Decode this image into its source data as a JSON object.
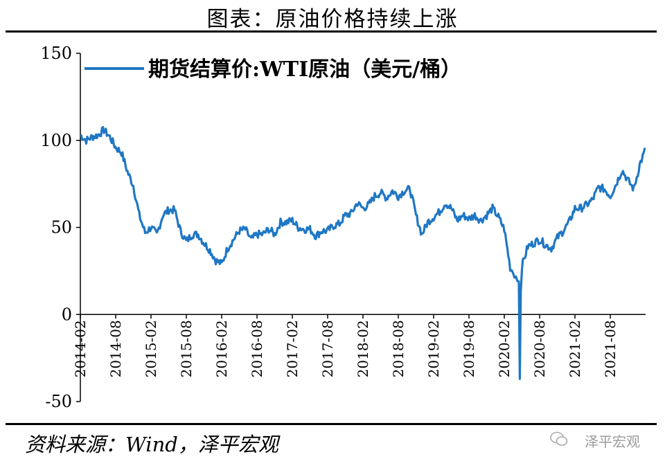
{
  "title": "图表：原油价格持续上涨",
  "source": "资料来源：Wind，泽平宏观",
  "watermark": "泽平宏观",
  "colors": {
    "series": "#1f77c4",
    "axis": "#000000"
  },
  "chart_data": {
    "type": "line",
    "title": "图表：原油价格持续上涨",
    "xlabel": "",
    "ylabel": "",
    "ylim": [
      -50,
      150
    ],
    "yticks": [
      150,
      100,
      50,
      0,
      -50
    ],
    "xlim": [
      "2014-02",
      "2022-02"
    ],
    "xticks": [
      "2014-02",
      "2014-08",
      "2015-02",
      "2015-08",
      "2016-02",
      "2016-08",
      "2017-02",
      "2017-08",
      "2018-02",
      "2018-08",
      "2019-02",
      "2019-08",
      "2020-02",
      "2020-08",
      "2021-02",
      "2021-08"
    ],
    "grid": false,
    "legend": "top-left",
    "series": [
      {
        "name": "期货结算价:WTI原油（美元/桶）",
        "color": "#1f77c4",
        "points": [
          [
            "2014-02",
            103
          ],
          [
            "2014-03",
            100
          ],
          [
            "2014-04",
            102
          ],
          [
            "2014-05",
            103
          ],
          [
            "2014-06",
            106
          ],
          [
            "2014-07",
            102
          ],
          [
            "2014-08",
            96
          ],
          [
            "2014-09",
            93
          ],
          [
            "2014-10",
            82
          ],
          [
            "2014-11",
            74
          ],
          [
            "2014-12",
            57
          ],
          [
            "2015-01",
            47
          ],
          [
            "2015-02",
            50
          ],
          [
            "2015-03",
            46
          ],
          [
            "2015-04",
            57
          ],
          [
            "2015-05",
            60
          ],
          [
            "2015-06",
            60
          ],
          [
            "2015-07",
            48
          ],
          [
            "2015-08",
            42
          ],
          [
            "2015-09",
            46
          ],
          [
            "2015-10",
            46
          ],
          [
            "2015-11",
            41
          ],
          [
            "2015-12",
            37
          ],
          [
            "2016-01",
            31
          ],
          [
            "2016-02",
            29
          ],
          [
            "2016-03",
            38
          ],
          [
            "2016-04",
            43
          ],
          [
            "2016-05",
            48
          ],
          [
            "2016-06",
            49
          ],
          [
            "2016-07",
            43
          ],
          [
            "2016-08",
            46
          ],
          [
            "2016-09",
            46
          ],
          [
            "2016-10",
            49
          ],
          [
            "2016-11",
            46
          ],
          [
            "2016-12",
            53
          ],
          [
            "2017-01",
            53
          ],
          [
            "2017-02",
            54
          ],
          [
            "2017-03",
            50
          ],
          [
            "2017-04",
            49
          ],
          [
            "2017-05",
            49
          ],
          [
            "2017-06",
            45
          ],
          [
            "2017-07",
            48
          ],
          [
            "2017-08",
            48
          ],
          [
            "2017-09",
            51
          ],
          [
            "2017-10",
            52
          ],
          [
            "2017-11",
            57
          ],
          [
            "2017-12",
            58
          ],
          [
            "2018-01",
            64
          ],
          [
            "2018-02",
            61
          ],
          [
            "2018-03",
            63
          ],
          [
            "2018-04",
            68
          ],
          [
            "2018-05",
            70
          ],
          [
            "2018-06",
            67
          ],
          [
            "2018-07",
            71
          ],
          [
            "2018-08",
            68
          ],
          [
            "2018-09",
            71
          ],
          [
            "2018-10",
            72
          ],
          [
            "2018-11",
            57
          ],
          [
            "2018-12",
            46
          ],
          [
            "2019-01",
            53
          ],
          [
            "2019-02",
            56
          ],
          [
            "2019-03",
            59
          ],
          [
            "2019-04",
            64
          ],
          [
            "2019-05",
            61
          ],
          [
            "2019-06",
            54
          ],
          [
            "2019-07",
            57
          ],
          [
            "2019-08",
            55
          ],
          [
            "2019-09",
            57
          ],
          [
            "2019-10",
            54
          ],
          [
            "2019-11",
            57
          ],
          [
            "2019-12",
            61
          ],
          [
            "2020-01",
            56
          ],
          [
            "2020-02",
            49
          ],
          [
            "2020-03",
            27
          ],
          [
            "2020-04-15",
            19
          ],
          [
            "2020-04-20",
            -37
          ],
          [
            "2020-04-25",
            13
          ],
          [
            "2020-05",
            28
          ],
          [
            "2020-06",
            39
          ],
          [
            "2020-07",
            41
          ],
          [
            "2020-08",
            43
          ],
          [
            "2020-09",
            40
          ],
          [
            "2020-10",
            38
          ],
          [
            "2020-11",
            44
          ],
          [
            "2020-12",
            48
          ],
          [
            "2021-01",
            53
          ],
          [
            "2021-02",
            61
          ],
          [
            "2021-03",
            61
          ],
          [
            "2021-04",
            63
          ],
          [
            "2021-05",
            66
          ],
          [
            "2021-06",
            73
          ],
          [
            "2021-07",
            72
          ],
          [
            "2021-08",
            68
          ],
          [
            "2021-09",
            75
          ],
          [
            "2021-10",
            83
          ],
          [
            "2021-11",
            77
          ],
          [
            "2021-12",
            72
          ],
          [
            "2022-01",
            86
          ],
          [
            "2022-02",
            95
          ]
        ]
      }
    ]
  }
}
